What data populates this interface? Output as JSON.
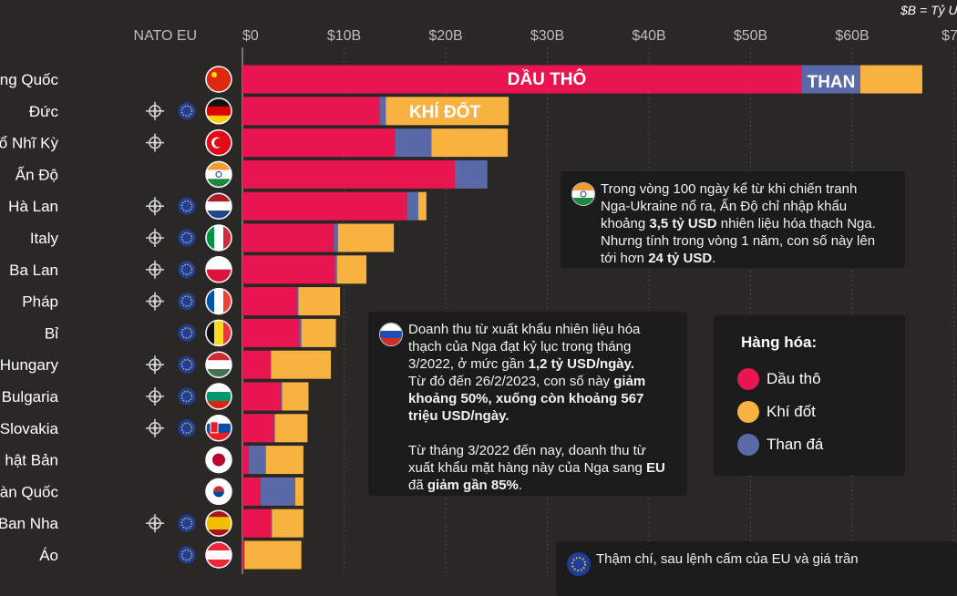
{
  "unit_note": "$B = Tỷ U",
  "membership_headers": {
    "nato": "NATO",
    "eu": "EU"
  },
  "colors": {
    "oil": "#e91550",
    "gas": "#f8b240",
    "coal": "#5a6aa8",
    "background": "#2a2827",
    "box": "#1c1b1b"
  },
  "chart_data": {
    "type": "bar",
    "orientation": "horizontal",
    "stacked": true,
    "unit": "$B",
    "xlim": [
      0,
      70
    ],
    "xticks": [
      "$0",
      "$10B",
      "$20B",
      "$30B",
      "$40B",
      "$50B",
      "$60B",
      "$70"
    ],
    "xtick_values": [
      0,
      10,
      20,
      30,
      40,
      50,
      60,
      70
    ],
    "categories": [
      "ng Quốc",
      "Đức",
      "ổ Nhĩ Kỳ",
      "Ấn Độ",
      "Hà Lan",
      "Italy",
      "Ba Lan",
      "Pháp",
      "Bỉ",
      "Hungary",
      "Bulgaria",
      "Slovakia",
      "hật Bản",
      "àn Quốc",
      "Ban Nha",
      "Áo"
    ],
    "nato": [
      false,
      true,
      true,
      false,
      true,
      true,
      true,
      true,
      false,
      true,
      true,
      true,
      false,
      false,
      true,
      false
    ],
    "eu": [
      false,
      true,
      false,
      false,
      true,
      true,
      true,
      true,
      true,
      true,
      true,
      true,
      false,
      false,
      true,
      true
    ],
    "series": [
      {
        "name": "Dầu thô",
        "values": [
          55.0,
          13.5,
          15.0,
          20.9,
          16.2,
          9.0,
          9.1,
          5.4,
          5.6,
          2.8,
          3.8,
          3.1,
          0.6,
          1.8,
          2.8,
          0.2
        ]
      },
      {
        "name": "Than đá",
        "values": [
          5.8,
          0.6,
          3.6,
          3.2,
          1.1,
          0.4,
          0.2,
          0.1,
          0.2,
          0.0,
          0.1,
          0.1,
          1.7,
          3.4,
          0.1,
          0.0
        ]
      },
      {
        "name": "Khí đốt",
        "values": [
          6.1,
          12.1,
          7.5,
          0.0,
          0.8,
          5.5,
          2.9,
          4.1,
          3.4,
          5.9,
          2.6,
          3.2,
          3.7,
          0.8,
          3.1,
          5.6
        ]
      }
    ],
    "bar_labels": {
      "oil": "DẦU THÔ",
      "coal": "THAN",
      "gas": "KHÍ ĐỐT"
    }
  },
  "legend": {
    "title": "Hàng hóa:",
    "items": [
      "Dầu thô",
      "Khí đốt",
      "Than đá"
    ]
  },
  "note_india": {
    "l1": "Trong vòng 100 ngày kể từ khi chiến tranh",
    "l2": "Nga-Ukraine nổ ra, Ấn Độ chỉ nhập khẩu",
    "l3a": "khoảng ",
    "l3b": "3,5 tỷ USD",
    "l3c": " nhiên liệu hóa thạch Nga.",
    "l4": "Nhưng tính trong vòng 1 năm, con số này lên",
    "l5a": "tới hơn ",
    "l5b": "24 tỷ USD",
    "l5c": "."
  },
  "note_russia": {
    "l1": "Doanh thu từ xuất khẩu nhiên liệu hóa",
    "l2": "thạch của Nga đạt kỷ lục trong tháng",
    "l3a": "3/2022, ở mức gần ",
    "l3b": "1,2 tỷ USD/ngày.",
    "l4a": "Từ đó đến 26/2/2023, con số này ",
    "l4b": "giảm",
    "l5": "khoảng 50%, xuống còn khoảng 567",
    "l6": "triệu USD/ngày.",
    "l7": "Từ tháng 3/2022 đến nay, doanh thu từ",
    "l8a": "xuất khẩu mặt hàng này của Nga sang ",
    "l8b": "EU",
    "l9a": "đã ",
    "l9b": "giảm gần 85%",
    "l9c": "."
  },
  "note_eu": {
    "l1": "Thậm chí, sau lệnh cấm của EU và giá trần"
  }
}
